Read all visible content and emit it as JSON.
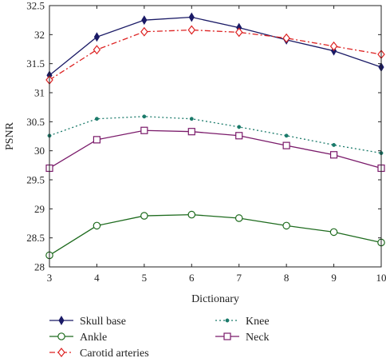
{
  "chart_data": {
    "type": "line",
    "xlabel": "Dictionary",
    "ylabel": "PSNR",
    "x": [
      3,
      4,
      5,
      6,
      7,
      8,
      9,
      10
    ],
    "xlim": [
      3,
      10
    ],
    "ylim": [
      28,
      32.5
    ],
    "x_ticks": [
      "3",
      "4",
      "5",
      "6",
      "7",
      "8",
      "9",
      "10"
    ],
    "y_ticks": [
      "28",
      "28.5",
      "29",
      "29.5",
      "30",
      "30.5",
      "31",
      "31.5",
      "32",
      "32.5"
    ],
    "grid": false,
    "legend_position": "bottom",
    "series": [
      {
        "name": "Skull base",
        "color": "#1a1a66",
        "marker": "diamond-filled",
        "line": "solid",
        "values": [
          31.3,
          31.96,
          32.25,
          32.3,
          32.12,
          31.91,
          31.72,
          31.44
        ]
      },
      {
        "name": "Ankle",
        "color": "#1e6b1e",
        "marker": "circle-open",
        "line": "solid",
        "values": [
          28.2,
          28.71,
          28.88,
          28.9,
          28.84,
          28.71,
          28.6,
          28.42
        ]
      },
      {
        "name": "Carotid arteries",
        "color": "#dd2222",
        "marker": "diamond-open",
        "line": "dashdot",
        "values": [
          31.22,
          31.74,
          32.05,
          32.08,
          32.04,
          31.94,
          31.8,
          31.66
        ]
      },
      {
        "name": "Knee",
        "color": "#1a7a6a",
        "marker": "dot",
        "line": "dotted",
        "values": [
          30.26,
          30.55,
          30.59,
          30.55,
          30.41,
          30.26,
          30.1,
          29.96
        ]
      },
      {
        "name": "Neck",
        "color": "#7a1a6a",
        "marker": "square-open",
        "line": "solid",
        "values": [
          29.7,
          30.19,
          30.35,
          30.33,
          30.26,
          30.09,
          29.93,
          29.7
        ]
      }
    ]
  }
}
